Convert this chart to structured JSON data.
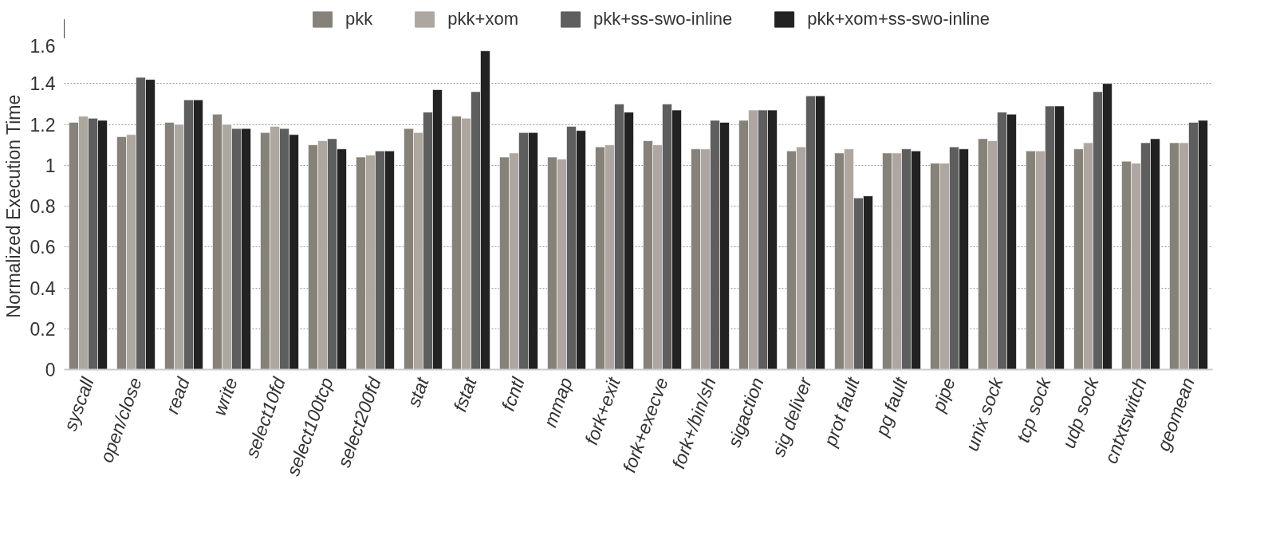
{
  "chart_data": {
    "type": "bar",
    "ylabel": "Normalized Execution Time",
    "categories": [
      "syscall",
      "open/close",
      "read",
      "write",
      "select10fd",
      "select100tcp",
      "select200fd",
      "stat",
      "fstat",
      "fcntl",
      "mmap",
      "fork+exit",
      "fork+execve",
      "fork+/bin/sh",
      "sigaction",
      "sig deliver",
      "prot fault",
      "pg fault",
      "pipe",
      "unix sock",
      "tcp sock",
      "udp sock",
      "cntxtswitch",
      "geomean"
    ],
    "series": [
      {
        "name": "pkk",
        "color": "#868279",
        "values": [
          1.21,
          1.14,
          1.21,
          1.25,
          1.16,
          1.1,
          1.04,
          1.18,
          1.24,
          1.04,
          1.04,
          1.09,
          1.12,
          1.08,
          1.22,
          1.07,
          1.06,
          1.06,
          1.01,
          1.13,
          1.07,
          1.08,
          1.02,
          1.11
        ]
      },
      {
        "name": "pkk+xom",
        "color": "#aea79f",
        "values": [
          1.24,
          1.15,
          1.2,
          1.2,
          1.19,
          1.12,
          1.05,
          1.16,
          1.23,
          1.06,
          1.03,
          1.1,
          1.1,
          1.08,
          1.27,
          1.09,
          1.08,
          1.06,
          1.01,
          1.12,
          1.07,
          1.11,
          1.01,
          1.11
        ]
      },
      {
        "name": "pkk+ss-swo-inline",
        "color": "#5e5e5e",
        "values": [
          1.23,
          1.43,
          1.32,
          1.18,
          1.18,
          1.13,
          1.07,
          1.26,
          1.36,
          1.16,
          1.19,
          1.3,
          1.3,
          1.22,
          1.27,
          1.34,
          0.84,
          1.08,
          1.09,
          1.26,
          1.29,
          1.36,
          1.11,
          1.21
        ]
      },
      {
        "name": "pkk+xom+ss-swo-inline",
        "color": "#222222",
        "values": [
          1.22,
          1.42,
          1.32,
          1.18,
          1.15,
          1.08,
          1.07,
          1.37,
          1.56,
          1.16,
          1.17,
          1.26,
          1.27,
          1.21,
          1.27,
          1.34,
          0.85,
          1.07,
          1.08,
          1.25,
          1.29,
          1.4,
          1.13,
          1.22
        ]
      }
    ],
    "ylim": [
      0,
      1.6
    ],
    "yticks": [
      0,
      0.2,
      0.4,
      0.6,
      0.8,
      1,
      1.2,
      1.4,
      1.6
    ],
    "grid": "y",
    "legend": "top"
  }
}
